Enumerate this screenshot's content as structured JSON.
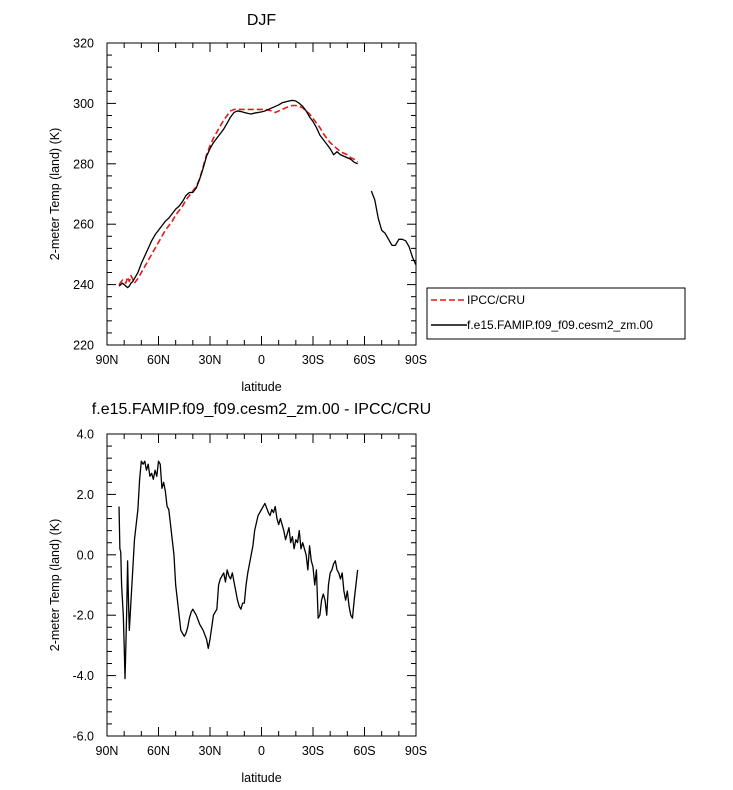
{
  "chart_data": [
    {
      "type": "line",
      "title": "DJF",
      "xlabel": "latitude",
      "ylabel": "2-meter Temp (land) (K)",
      "xlim": [
        90,
        -90
      ],
      "ylim": [
        220,
        320
      ],
      "xticks": [
        90,
        60,
        30,
        0,
        -30,
        -60,
        -90
      ],
      "xtick_labels": [
        "90N",
        "60N",
        "30N",
        "0",
        "30S",
        "60S",
        "90S"
      ],
      "yticks": [
        220,
        240,
        260,
        280,
        300,
        320
      ],
      "ytick_labels": [
        "220",
        "240",
        "260",
        "280",
        "300",
        "320"
      ],
      "grid": false,
      "legend_position": "right",
      "series": [
        {
          "name": "IPCC/CRU",
          "color": "#e41a1c",
          "dash": "dashed",
          "x": [
            83,
            81,
            79,
            78,
            77,
            76,
            74,
            72,
            70,
            68,
            66,
            64,
            62,
            60,
            58,
            56,
            54,
            52,
            50,
            48,
            46,
            44,
            42,
            40,
            38,
            36,
            34,
            32,
            30,
            28,
            26,
            24,
            22,
            20,
            18,
            16,
            14,
            12,
            10,
            8,
            6,
            4,
            2,
            0,
            -2,
            -4,
            -6,
            -8,
            -10,
            -12,
            -14,
            -16,
            -18,
            -20,
            -22,
            -24,
            -26,
            -28,
            -30,
            -32,
            -34,
            -36,
            -38,
            -40,
            -42,
            -44,
            -46,
            -48,
            -50,
            -52,
            -54,
            -56
          ],
          "y": [
            240.0,
            241.5,
            240.5,
            242.5,
            241.0,
            243.0,
            240.5,
            242.0,
            244.0,
            246.0,
            248.0,
            250.0,
            252.0,
            254.0,
            256.0,
            258.0,
            259.5,
            261.0,
            263.0,
            264.5,
            266.0,
            268.0,
            269.5,
            271.0,
            272.5,
            275.0,
            279.0,
            283.0,
            286.0,
            288.5,
            290.5,
            292.5,
            294.5,
            296.0,
            297.5,
            298.0,
            298.0,
            298.0,
            298.0,
            298.0,
            298.0,
            298.0,
            298.0,
            298.0,
            298.0,
            297.8,
            297.5,
            297.0,
            297.5,
            298.0,
            298.5,
            299.0,
            299.3,
            299.3,
            299.0,
            298.5,
            297.5,
            296.5,
            295.0,
            293.5,
            292.0,
            290.0,
            288.5,
            287.0,
            286.0,
            285.0,
            284.0,
            283.5,
            283.0,
            282.0,
            281.5,
            280.5
          ]
        },
        {
          "name": "f.e15.FAMIP.f09_f09.cesm2_zm.00",
          "color": "#000000",
          "dash": "solid",
          "x": [
            83,
            82,
            81,
            80,
            79,
            78,
            77,
            76,
            75,
            74,
            72,
            70,
            68,
            66,
            64,
            62,
            60,
            58,
            56,
            54,
            52,
            50,
            48,
            46,
            44,
            42,
            40,
            38,
            36,
            34,
            32,
            30,
            28,
            26,
            24,
            22,
            20,
            18,
            16,
            14,
            12,
            10,
            8,
            6,
            4,
            2,
            0,
            -2,
            -4,
            -6,
            -8,
            -10,
            -12,
            -14,
            -16,
            -18,
            -20,
            -22,
            -24,
            -26,
            -28,
            -30,
            -32,
            -34,
            -36,
            -38,
            -40,
            -42,
            -44,
            -46,
            -48,
            -50,
            -52,
            -54,
            -56,
            null,
            -64,
            -66,
            -68,
            -70,
            -72,
            -74,
            -76,
            -78,
            -80,
            -82,
            -84,
            -86,
            -88,
            -90
          ],
          "y": [
            239.5,
            240.0,
            240.5,
            240.0,
            239.5,
            239.0,
            239.5,
            240.5,
            241.0,
            242.0,
            244.0,
            247.0,
            249.5,
            252.0,
            254.5,
            256.5,
            258.0,
            259.5,
            261.0,
            262.0,
            263.5,
            265.0,
            266.0,
            267.5,
            269.5,
            270.5,
            270.5,
            272.0,
            275.0,
            278.5,
            282.5,
            285.0,
            287.0,
            288.5,
            290.0,
            291.5,
            293.5,
            295.5,
            297.0,
            297.5,
            297.3,
            297.0,
            296.7,
            296.5,
            296.8,
            297.0,
            297.2,
            297.5,
            298.0,
            298.5,
            299.0,
            299.5,
            300.2,
            300.5,
            300.8,
            301.0,
            300.8,
            300.0,
            299.0,
            297.5,
            295.5,
            294.0,
            292.0,
            289.5,
            288.0,
            286.5,
            285.0,
            283.0,
            284.0,
            283.0,
            282.5,
            282.0,
            281.5,
            280.5,
            280.0,
            null,
            271.0,
            268.0,
            262.0,
            258.0,
            257.0,
            255.0,
            253.0,
            253.0,
            255.0,
            255.0,
            254.5,
            252.5,
            249.0,
            246.5
          ]
        }
      ]
    },
    {
      "type": "line",
      "title": "f.e15.FAMIP.f09_f09.cesm2_zm.00 - IPCC/CRU",
      "xlabel": "latitude",
      "ylabel": "2-meter Temp (land) (K)",
      "xlim": [
        90,
        -90
      ],
      "ylim": [
        -6.0,
        4.0
      ],
      "xticks": [
        90,
        60,
        30,
        0,
        -30,
        -60,
        -90
      ],
      "xtick_labels": [
        "90N",
        "60N",
        "30N",
        "0",
        "30S",
        "60S",
        "90S"
      ],
      "yticks": [
        -6.0,
        -4.0,
        -2.0,
        0.0,
        2.0,
        4.0
      ],
      "ytick_labels": [
        "-6.0",
        "-4.0",
        "-2.0",
        "0.0",
        "2.0",
        "4.0"
      ],
      "grid": false,
      "series": [
        {
          "color": "#000000",
          "dash": "solid",
          "x": [
            83,
            82.5,
            82,
            81.5,
            81,
            80.5,
            80,
            79.5,
            79,
            78.5,
            78,
            77.5,
            77,
            76.5,
            76,
            75,
            74,
            73,
            72,
            71,
            70,
            69,
            68,
            67,
            66,
            65,
            64,
            63,
            62,
            61,
            60,
            59,
            58,
            57,
            56,
            55,
            54,
            53,
            52,
            51,
            50,
            49,
            48,
            47,
            46,
            45,
            44,
            43,
            42,
            41,
            40,
            39,
            38,
            36,
            34,
            32,
            31,
            30,
            29,
            28,
            26,
            25,
            24,
            22,
            21,
            20,
            19,
            18,
            17,
            16,
            15,
            14,
            13,
            12,
            11,
            10,
            9,
            8,
            7,
            6,
            5,
            4,
            2,
            0,
            -1,
            -2,
            -4,
            -5,
            -6,
            -7,
            -8,
            -9,
            -10,
            -11,
            -12,
            -13,
            -14,
            -15,
            -16,
            -17,
            -18,
            -19,
            -20,
            -21,
            -22,
            -23,
            -24,
            -25,
            -26,
            -27,
            -28,
            -29,
            -30,
            -31,
            -32,
            -33,
            -34,
            -35,
            -36,
            -37,
            -38,
            -39,
            -40,
            -41,
            -42,
            -43,
            -44,
            -45,
            -46,
            -47,
            -48,
            -49,
            -50,
            -51,
            -52,
            -53,
            -54,
            -55,
            -56
          ],
          "y": [
            1.6,
            0.2,
            0.1,
            -1.0,
            -1.5,
            -2.0,
            -3.0,
            -4.1,
            -3.0,
            -1.8,
            -0.2,
            -1.5,
            -2.5,
            -2.0,
            -1.5,
            -0.5,
            0.5,
            1.0,
            1.5,
            2.5,
            3.1,
            3.0,
            3.1,
            2.8,
            3.0,
            2.6,
            2.7,
            2.5,
            2.8,
            2.6,
            3.1,
            3.0,
            2.2,
            2.4,
            2.1,
            1.6,
            1.5,
            1.0,
            0.5,
            0.0,
            -1.0,
            -1.5,
            -2.0,
            -2.5,
            -2.6,
            -2.7,
            -2.6,
            -2.4,
            -2.1,
            -1.9,
            -1.8,
            -1.9,
            -2.0,
            -2.3,
            -2.5,
            -2.8,
            -3.1,
            -2.8,
            -2.4,
            -2.0,
            -1.8,
            -1.0,
            -0.8,
            -0.6,
            -0.9,
            -0.5,
            -0.7,
            -0.8,
            -0.6,
            -0.9,
            -1.2,
            -1.5,
            -1.7,
            -1.8,
            -1.6,
            -1.6,
            -1.0,
            -0.6,
            -0.3,
            0.0,
            0.3,
            0.8,
            1.3,
            1.5,
            1.6,
            1.7,
            1.4,
            1.3,
            1.5,
            1.4,
            1.6,
            1.2,
            1.0,
            1.2,
            1.0,
            0.8,
            0.5,
            0.7,
            0.9,
            0.4,
            0.6,
            0.2,
            0.5,
            0.4,
            0.8,
            0.2,
            0.4,
            0.2,
            0.0,
            -0.5,
            0.3,
            -0.2,
            -0.4,
            -1.0,
            -0.5,
            -2.1,
            -2.0,
            -1.5,
            -1.3,
            -1.5,
            -2.0,
            -1.0,
            -0.6,
            -0.5,
            -0.3,
            -0.2,
            -0.5,
            -0.6,
            -0.8,
            -0.6,
            -1.2,
            -1.5,
            -1.2,
            -1.7,
            -2.0,
            -2.1,
            -1.5,
            -1.0,
            -0.5
          ]
        }
      ]
    }
  ]
}
